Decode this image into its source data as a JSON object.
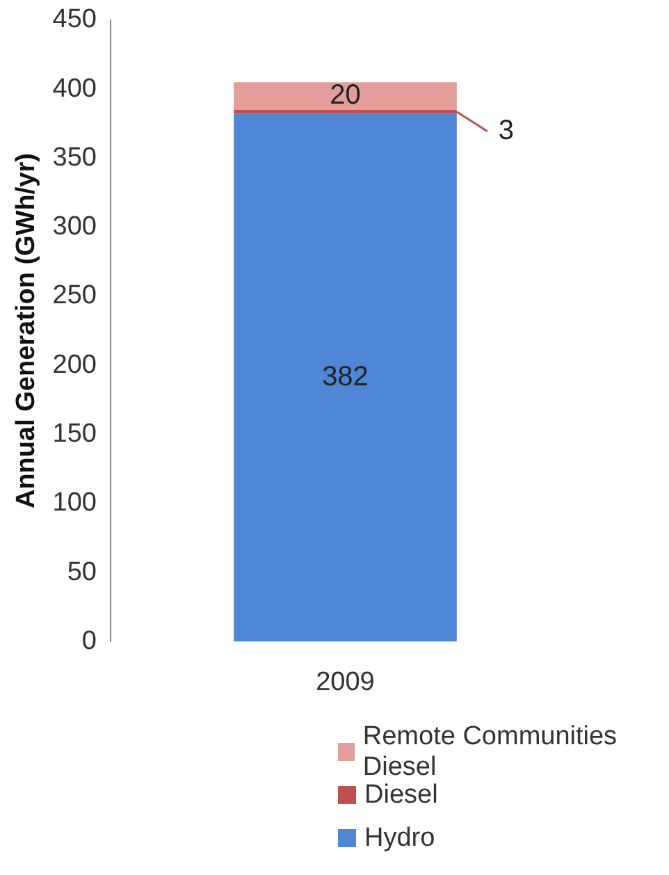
{
  "chart_data": {
    "type": "bar",
    "stacked": true,
    "ylabel": "Annual Generation (GWh/yr)",
    "categories": [
      "2009"
    ],
    "series": [
      {
        "name": "Hydro",
        "color": "#4f86d6",
        "values": [
          382
        ]
      },
      {
        "name": "Diesel",
        "color": "#c0504d",
        "values": [
          3
        ]
      },
      {
        "name": "Remote Communities Diesel",
        "color": "#e39d9b",
        "values": [
          20
        ]
      }
    ],
    "ylim": [
      0,
      450
    ],
    "yticks": [
      0,
      50,
      100,
      150,
      200,
      250,
      300,
      350,
      400,
      450
    ],
    "grid": false,
    "legend": "bottom",
    "data_labels": true
  }
}
